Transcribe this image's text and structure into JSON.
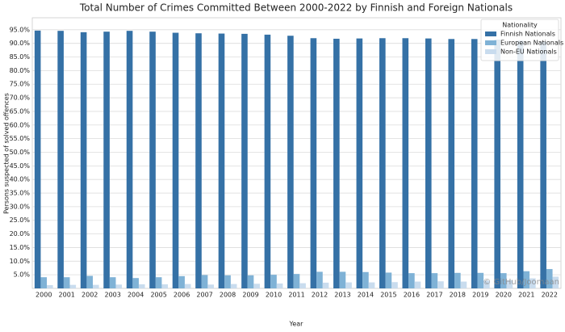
{
  "chart_data": {
    "type": "bar",
    "title": "Total Number of Crimes Committed Between 2000-2022 by Finnish and Foreign Nationals",
    "x_label": "Year",
    "y_label": "Persons suspected of solved offences",
    "categories": [
      "2000",
      "2001",
      "2002",
      "2003",
      "2004",
      "2005",
      "2006",
      "2007",
      "2008",
      "2009",
      "2010",
      "2011",
      "2012",
      "2013",
      "2014",
      "2015",
      "2016",
      "2017",
      "2018",
      "2019",
      "2020",
      "2021",
      "2022"
    ],
    "series": [
      {
        "name": "Finnish Nationals",
        "color": "#3571a6",
        "values": [
          94.7,
          94.6,
          94.1,
          94.3,
          94.6,
          94.3,
          93.9,
          93.7,
          93.6,
          93.5,
          93.2,
          92.8,
          91.9,
          91.7,
          91.8,
          91.9,
          91.9,
          91.8,
          91.6,
          91.6,
          91.4,
          91.0,
          90.6
        ]
      },
      {
        "name": "European Nationals",
        "color": "#7fb2d6",
        "values": [
          4.1,
          4.1,
          4.6,
          4.1,
          3.8,
          4.1,
          4.5,
          4.9,
          4.8,
          4.8,
          5.0,
          5.3,
          6.1,
          6.1,
          6.0,
          5.8,
          5.6,
          5.6,
          5.7,
          5.7,
          5.6,
          6.3,
          7.1
        ]
      },
      {
        "name": "Non-EU Nationals",
        "color": "#c9dcee",
        "values": [
          1.2,
          1.3,
          1.3,
          1.4,
          1.5,
          1.5,
          1.6,
          1.4,
          1.6,
          1.7,
          1.8,
          1.9,
          2.1,
          2.2,
          2.2,
          2.3,
          2.5,
          2.6,
          2.5,
          2.8,
          3.0,
          3.7,
          4.3
        ]
      }
    ],
    "legend_title": "Nationality",
    "legend_position": "upper right",
    "grid": true,
    "ylim": [
      0,
      99.4
    ],
    "yticks": [
      {
        "value": 5,
        "label": "5.0%"
      },
      {
        "value": 10,
        "label": "10.0%"
      },
      {
        "value": 15,
        "label": "15.0%"
      },
      {
        "value": 20,
        "label": "20.0%"
      },
      {
        "value": 25,
        "label": "25.0%"
      },
      {
        "value": 30,
        "label": "30.0%"
      },
      {
        "value": 35,
        "label": "35.0%"
      },
      {
        "value": 40,
        "label": "40.0%"
      },
      {
        "value": 45,
        "label": "45.0%"
      },
      {
        "value": 50,
        "label": "50.0%"
      },
      {
        "value": 55,
        "label": "55.0%"
      },
      {
        "value": 60,
        "label": "60.0%"
      },
      {
        "value": 65,
        "label": "65.0%"
      },
      {
        "value": 70,
        "label": "70.0%"
      },
      {
        "value": 75,
        "label": "75.0%"
      },
      {
        "value": 80,
        "label": "80.0%"
      },
      {
        "value": 85,
        "label": "85.0%"
      },
      {
        "value": 90,
        "label": "90.0%"
      },
      {
        "value": 95,
        "label": "95.0%"
      }
    ],
    "watermark": "© GitHub/Joomaan"
  }
}
